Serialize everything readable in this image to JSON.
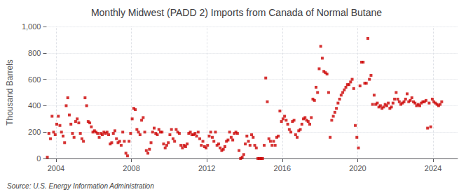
{
  "chart_data": {
    "type": "scatter",
    "title": "Monthly Midwest (PADD 2) Imports from Canada of Normal Butane",
    "ylabel": "Thousand Barrels",
    "annotations": [
      "Source: U.S. Energy Information Administration"
    ],
    "color": "#cc0000",
    "marker": "square",
    "grid": true,
    "xlim": [
      2003.5,
      2025.3
    ],
    "xticks": [
      2004,
      2008,
      2012,
      2016,
      2020,
      2024
    ],
    "ylim": [
      0,
      1000
    ],
    "yticks": [
      0,
      200,
      400,
      600,
      800,
      {
        "value": 1000,
        "label": "1,000"
      }
    ],
    "x": [
      2003.541667,
      2003.625,
      2003.708333,
      2003.791667,
      2003.875,
      2003.958333,
      2004.041667,
      2004.125,
      2004.208333,
      2004.291667,
      2004.375,
      2004.458333,
      2004.541667,
      2004.625,
      2004.708333,
      2004.791667,
      2004.875,
      2004.958333,
      2005.041667,
      2005.125,
      2005.208333,
      2005.291667,
      2005.375,
      2005.458333,
      2005.541667,
      2005.625,
      2005.708333,
      2005.791667,
      2005.875,
      2005.958333,
      2006.041667,
      2006.125,
      2006.208333,
      2006.291667,
      2006.375,
      2006.458333,
      2006.541667,
      2006.625,
      2006.708333,
      2006.791667,
      2006.875,
      2006.958333,
      2007.041667,
      2007.125,
      2007.208333,
      2007.291667,
      2007.375,
      2007.458333,
      2007.541667,
      2007.625,
      2007.708333,
      2007.791667,
      2007.875,
      2007.958333,
      2008.041667,
      2008.125,
      2008.208333,
      2008.291667,
      2008.375,
      2008.458333,
      2008.541667,
      2008.625,
      2008.708333,
      2008.791667,
      2008.875,
      2008.958333,
      2009.041667,
      2009.125,
      2009.208333,
      2009.291667,
      2009.375,
      2009.458333,
      2009.541667,
      2009.625,
      2009.708333,
      2009.791667,
      2009.875,
      2009.958333,
      2010.041667,
      2010.125,
      2010.208333,
      2010.291667,
      2010.375,
      2010.458333,
      2010.541667,
      2010.625,
      2010.708333,
      2010.791667,
      2010.875,
      2010.958333,
      2011.041667,
      2011.125,
      2011.208333,
      2011.291667,
      2011.375,
      2011.458333,
      2011.541667,
      2011.625,
      2011.708333,
      2011.791667,
      2011.875,
      2011.958333,
      2012.041667,
      2012.125,
      2012.208333,
      2012.291667,
      2012.375,
      2012.458333,
      2012.541667,
      2012.625,
      2012.708333,
      2012.791667,
      2012.875,
      2012.958333,
      2013.041667,
      2013.125,
      2013.208333,
      2013.291667,
      2013.375,
      2013.458333,
      2013.541667,
      2013.625,
      2013.708333,
      2013.791667,
      2013.875,
      2013.958333,
      2014.041667,
      2014.125,
      2014.208333,
      2014.291667,
      2014.375,
      2014.458333,
      2014.541667,
      2014.625,
      2014.708333,
      2014.791667,
      2014.875,
      2014.958333,
      2015.041667,
      2015.125,
      2015.208333,
      2015.291667,
      2015.375,
      2015.458333,
      2015.541667,
      2015.625,
      2015.708333,
      2015.791667,
      2015.875,
      2015.958333,
      2016.041667,
      2016.125,
      2016.208333,
      2016.291667,
      2016.375,
      2016.458333,
      2016.541667,
      2016.625,
      2016.708333,
      2016.791667,
      2016.875,
      2016.958333,
      2017.041667,
      2017.125,
      2017.208333,
      2017.291667,
      2017.375,
      2017.458333,
      2017.541667,
      2017.625,
      2017.708333,
      2017.791667,
      2017.875,
      2017.958333,
      2018.041667,
      2018.125,
      2018.208333,
      2018.291667,
      2018.375,
      2018.458333,
      2018.541667,
      2018.625,
      2018.708333,
      2018.791667,
      2018.875,
      2018.958333,
      2019.041667,
      2019.125,
      2019.208333,
      2019.291667,
      2019.375,
      2019.458333,
      2019.541667,
      2019.625,
      2019.708333,
      2019.791667,
      2019.875,
      2019.958333,
      2020.041667,
      2020.125,
      2020.208333,
      2020.291667,
      2020.375,
      2020.458333,
      2020.541667,
      2020.625,
      2020.708333,
      2020.791667,
      2020.875,
      2020.958333,
      2021.041667,
      2021.125,
      2021.208333,
      2021.291667,
      2021.375,
      2021.458333,
      2021.541667,
      2021.625,
      2021.708333,
      2021.791667,
      2021.875,
      2021.958333,
      2022.041667,
      2022.125,
      2022.208333,
      2022.291667,
      2022.375,
      2022.458333,
      2022.541667,
      2022.625,
      2022.708333,
      2022.791667,
      2022.875,
      2022.958333,
      2023.041667,
      2023.125,
      2023.208333,
      2023.291667,
      2023.375,
      2023.458333,
      2023.541667,
      2023.625,
      2023.708333,
      2023.791667,
      2023.875,
      2023.958333,
      2024.041667,
      2024.125,
      2024.208333,
      2024.291667,
      2024.375,
      2024.458333
    ],
    "values": [
      10,
      190,
      150,
      320,
      200,
      180,
      260,
      320,
      250,
      200,
      170,
      120,
      400,
      460,
      330,
      260,
      190,
      160,
      280,
      300,
      270,
      190,
      150,
      130,
      460,
      400,
      280,
      270,
      240,
      200,
      210,
      200,
      190,
      160,
      190,
      180,
      200,
      190,
      200,
      180,
      110,
      120,
      190,
      210,
      150,
      120,
      130,
      100,
      200,
      130,
      40,
      20,
      130,
      190,
      300,
      380,
      370,
      220,
      200,
      180,
      290,
      310,
      200,
      60,
      40,
      70,
      120,
      200,
      230,
      190,
      180,
      220,
      200,
      200,
      110,
      80,
      100,
      120,
      180,
      220,
      150,
      130,
      220,
      200,
      190,
      100,
      80,
      100,
      90,
      110,
      190,
      200,
      180,
      180,
      190,
      170,
      200,
      150,
      100,
      130,
      90,
      80,
      100,
      170,
      200,
      160,
      130,
      200,
      100,
      110,
      80,
      60,
      70,
      90,
      130,
      140,
      200,
      160,
      140,
      190,
      200,
      190,
      60,
      0,
      10,
      30,
      110,
      170,
      130,
      100,
      180,
      160,
      100,
      80,
      0,
      0,
      0,
      0,
      100,
      610,
      430,
      150,
      130,
      100,
      130,
      100,
      160,
      170,
      360,
      280,
      300,
      320,
      290,
      260,
      220,
      200,
      280,
      290,
      180,
      160,
      210,
      220,
      260,
      300,
      310,
      290,
      280,
      260,
      310,
      450,
      440,
      540,
      500,
      680,
      850,
      760,
      660,
      650,
      640,
      500,
      160,
      290,
      320,
      350,
      380,
      420,
      450,
      480,
      500,
      520,
      540,
      560,
      560,
      580,
      600,
      530,
      250,
      160,
      80,
      550,
      730,
      730,
      570,
      570,
      910,
      600,
      630,
      410,
      480,
      410,
      420,
      390,
      400,
      380,
      390,
      410,
      400,
      420,
      380,
      390,
      420,
      450,
      500,
      450,
      430,
      410,
      420,
      430,
      450,
      490,
      430,
      440,
      460,
      430,
      420,
      400,
      410,
      400,
      420,
      430,
      430,
      440,
      230,
      420,
      240,
      450,
      430,
      420,
      410,
      400,
      410,
      430
    ]
  }
}
